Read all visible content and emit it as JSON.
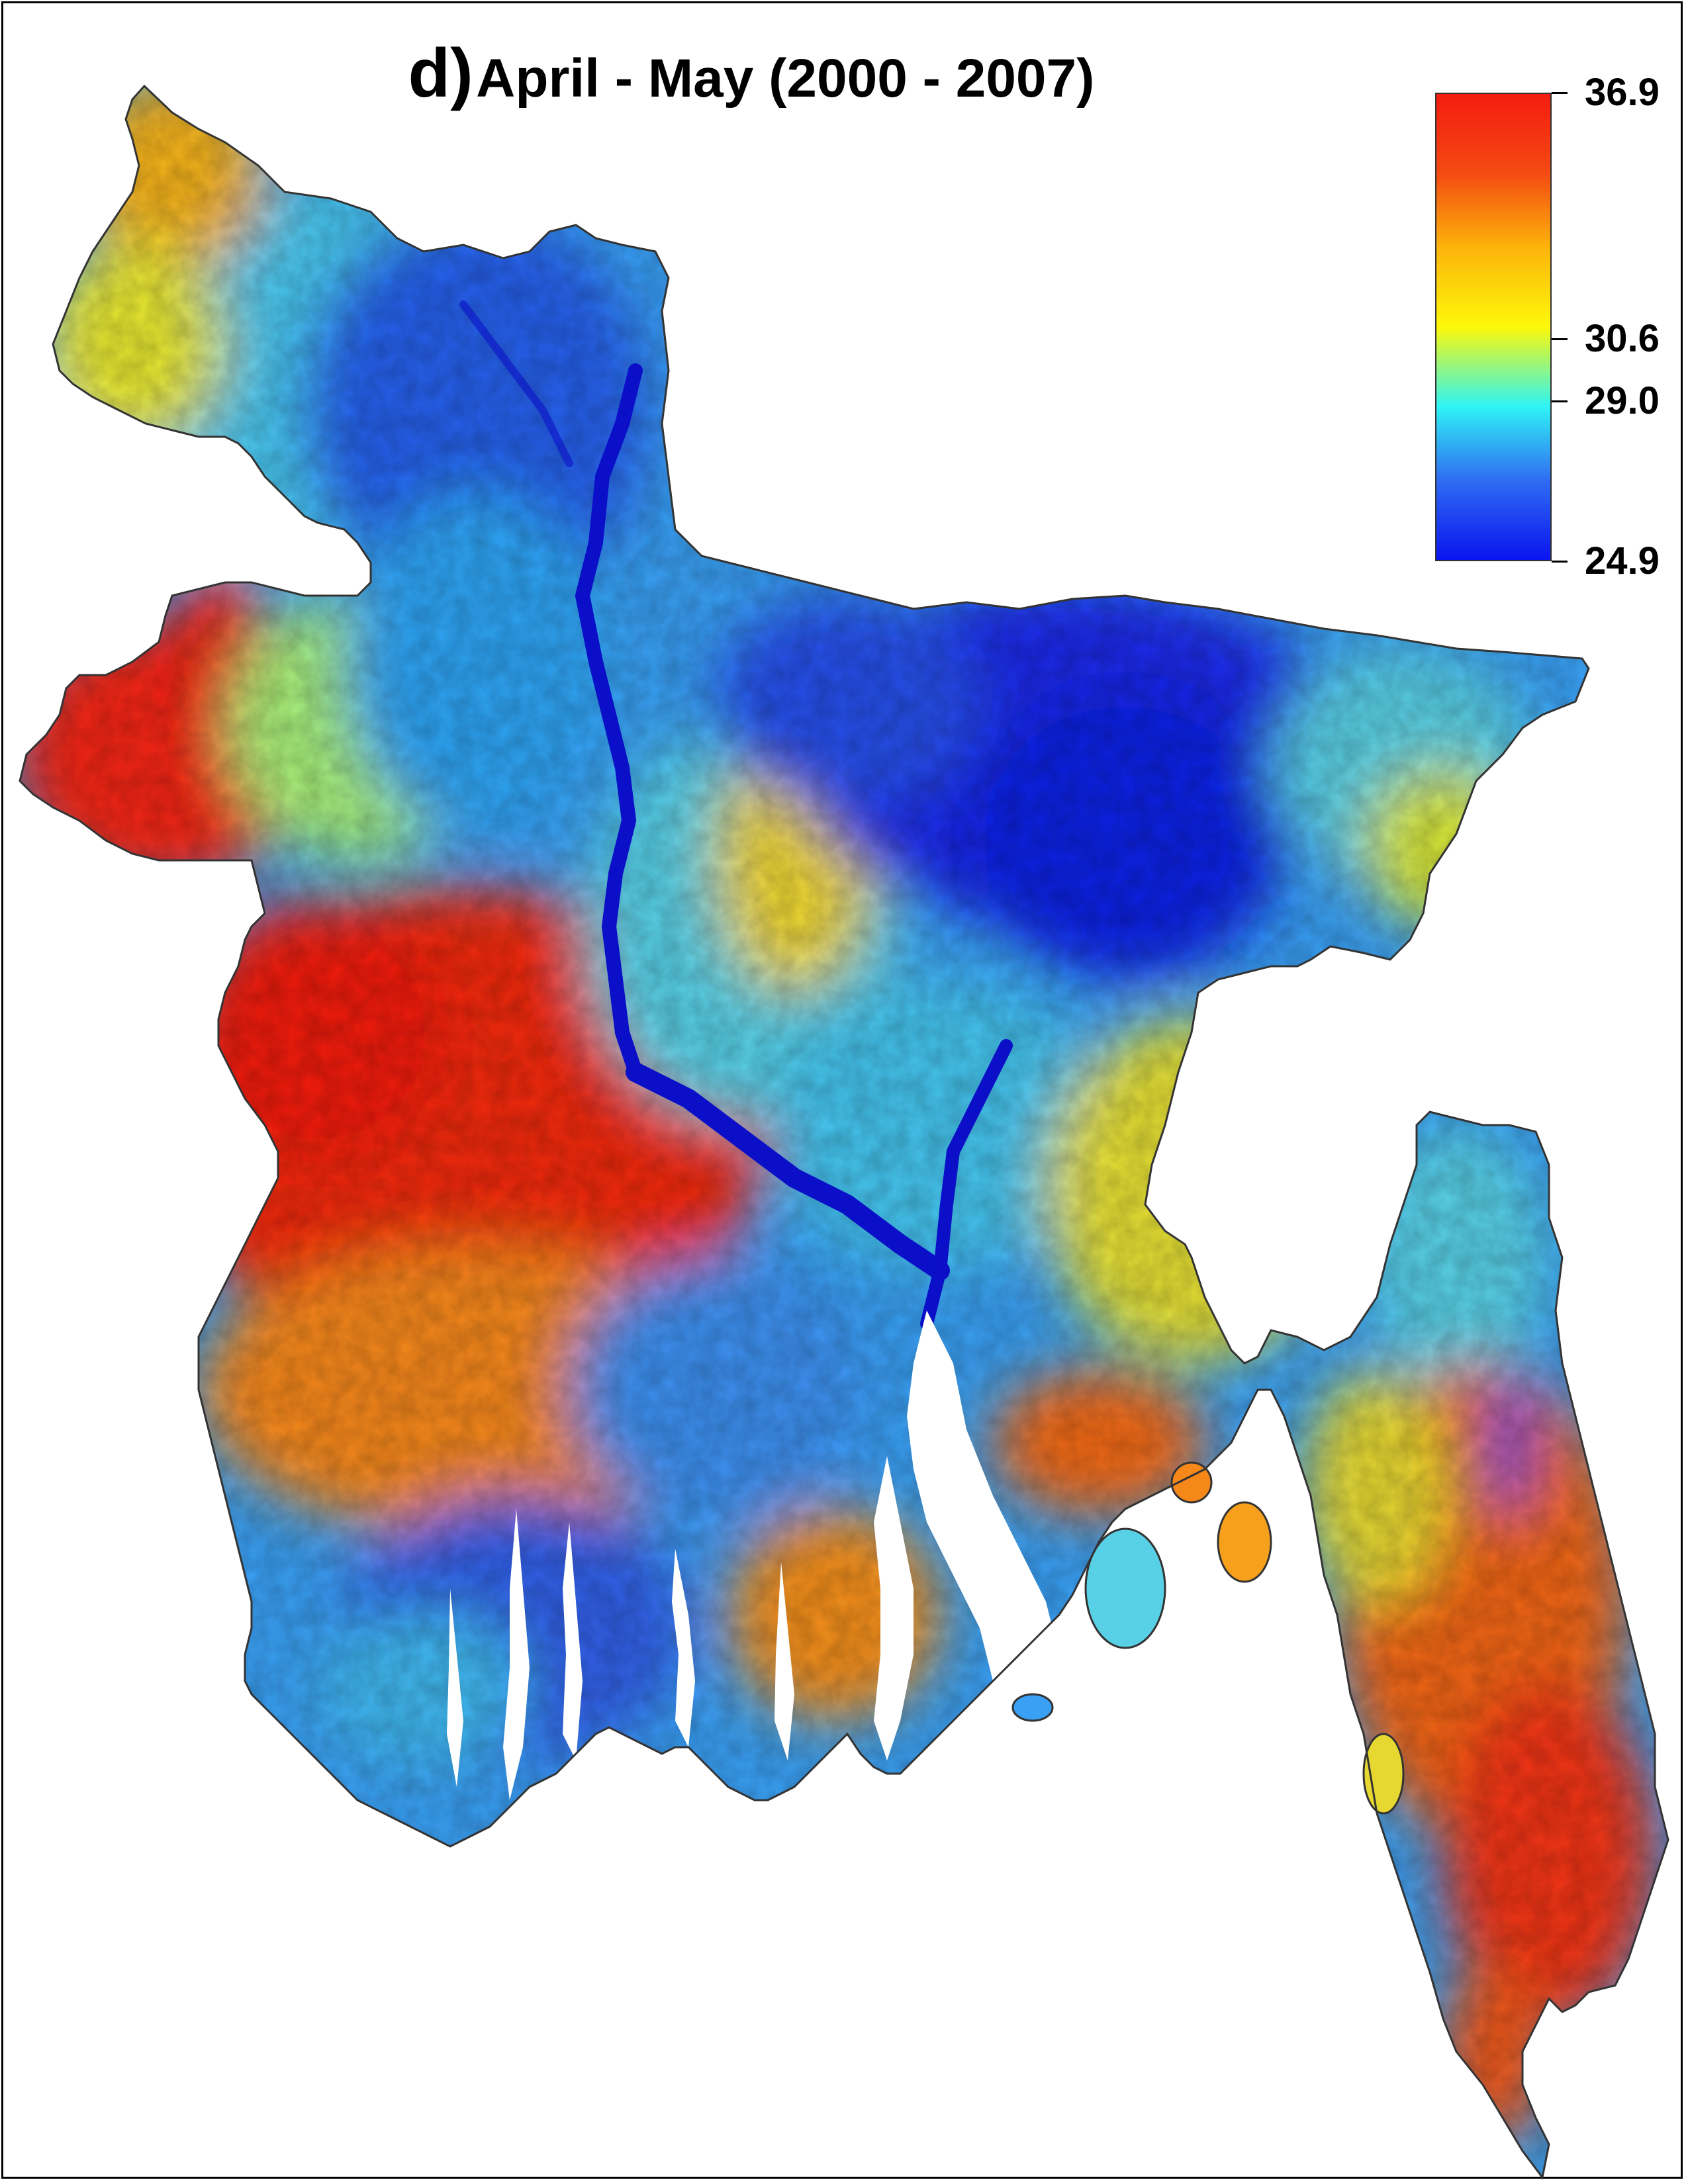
{
  "map": {
    "title_letter": "d)",
    "title_text": "April - May (2000 - 2007)",
    "region_depicted": "Bangladesh",
    "colorbar": {
      "min": 24.9,
      "max": 36.9,
      "ticks": [
        {
          "value": 36.9,
          "label": "36.9"
        },
        {
          "value": 30.6,
          "label": "30.6"
        },
        {
          "value": 29.0,
          "label": "29.0"
        },
        {
          "value": 24.9,
          "label": "24.9"
        }
      ],
      "colors": [
        "#0a14f0",
        "#2f6cf2",
        "#2ff4f4",
        "#fdf80a",
        "#fcb40a",
        "#f44a12",
        "#f41c10"
      ]
    },
    "colors": {
      "hot": "#f0200e",
      "warm": "#f77a14",
      "mild": "#f6e91a",
      "cool": "#34e6f0",
      "cold": "#1830e8",
      "river": "#0b10c8",
      "outline": "#333333"
    }
  }
}
